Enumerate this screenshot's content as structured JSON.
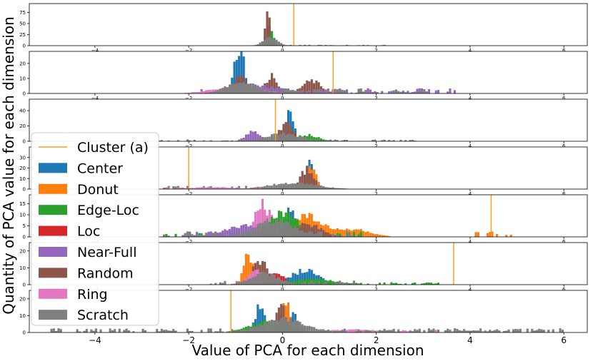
{
  "figure": {
    "xlabel": "Value of PCA for each dimension",
    "ylabel": "Quantity of PCA value for each dimension"
  },
  "legend": {
    "placement": "left",
    "items": [
      {
        "label": "Cluster (a)",
        "kind": "line",
        "color": "#ff9f1c"
      },
      {
        "label": "Center",
        "kind": "patch",
        "color": "#1f77b4"
      },
      {
        "label": "Donut",
        "kind": "patch",
        "color": "#ff7f0e"
      },
      {
        "label": "Edge-Loc",
        "kind": "patch",
        "color": "#2ca02c"
      },
      {
        "label": "Loc",
        "kind": "patch",
        "color": "#d62728"
      },
      {
        "label": "Near-Full",
        "kind": "patch",
        "color": "#9467bd"
      },
      {
        "label": "Random",
        "kind": "patch",
        "color": "#8c564b"
      },
      {
        "label": "Ring",
        "kind": "patch",
        "color": "#e377c2"
      },
      {
        "label": "Scratch",
        "kind": "patch",
        "color": "#7f7f7f"
      }
    ]
  },
  "chart_data": {
    "type": "histogram",
    "xlim": [
      -5.4,
      6.5
    ],
    "xticks": [
      -4,
      -2,
      0,
      2,
      4,
      6
    ],
    "xtick_labels": [
      "−4",
      "−2",
      "0",
      "2",
      "4",
      "6"
    ],
    "grid": false,
    "bin_width": 0.05,
    "panels": [
      {
        "ylim": [
          0,
          95
        ],
        "yticks": [
          0,
          25,
          50,
          75
        ],
        "cluster_x": 0.24,
        "series": [
          {
            "name": "Center",
            "peaks": [
              {
                "x": -0.32,
                "y": 45,
                "w": 0.08
              }
            ]
          },
          {
            "name": "Edge-Loc",
            "peaks": [
              {
                "x": -0.3,
                "y": 50,
                "w": 0.07
              }
            ]
          },
          {
            "name": "Random",
            "peaks": [
              {
                "x": -0.34,
                "y": 88,
                "w": 0.05
              }
            ]
          },
          {
            "name": "Scratch",
            "peaks": [
              {
                "x": -0.28,
                "y": 22,
                "w": 0.15
              }
            ],
            "tail": [
              -0.5,
              2.2,
              1.5
            ]
          }
        ]
      },
      {
        "ylim": [
          0,
          28
        ],
        "yticks": [
          0,
          10,
          20
        ],
        "cluster_x": 1.08,
        "series": [
          {
            "name": "Center",
            "peaks": [
              {
                "x": -0.92,
                "y": 26,
                "w": 0.1
              },
              {
                "x": -1.0,
                "y": 14,
                "w": 0.1
              }
            ]
          },
          {
            "name": "Random",
            "peaks": [
              {
                "x": -0.92,
                "y": 15,
                "w": 0.14
              },
              {
                "x": -0.25,
                "y": 15,
                "w": 0.12
              },
              {
                "x": 0.6,
                "y": 10,
                "w": 0.2
              }
            ]
          },
          {
            "name": "Near-Full",
            "peaks": [
              {
                "x": -0.6,
                "y": 6,
                "w": 0.6
              }
            ],
            "tail": [
              -1.8,
              3.7,
              3
            ]
          },
          {
            "name": "Ring",
            "peaks": [
              {
                "x": -1.0,
                "y": 5,
                "w": 0.5
              }
            ],
            "tail": [
              -1.8,
              -0.4,
              2
            ]
          },
          {
            "name": "Scratch",
            "peaks": [
              {
                "x": -0.9,
                "y": 10,
                "w": 0.3
              }
            ],
            "tail": [
              -1.5,
              3.0,
              3
            ]
          }
        ]
      },
      {
        "ylim": [
          0,
          55
        ],
        "yticks": [
          0,
          20,
          40
        ],
        "cluster_x": -0.15,
        "series": [
          {
            "name": "Center",
            "peaks": [
              {
                "x": 0.12,
                "y": 42,
                "w": 0.1
              }
            ]
          },
          {
            "name": "Near-Full",
            "peaks": [
              {
                "x": -0.65,
                "y": 16,
                "w": 0.15
              }
            ]
          },
          {
            "name": "Random",
            "peaks": [
              {
                "x": 0.05,
                "y": 27,
                "w": 0.15
              }
            ]
          },
          {
            "name": "Loc",
            "peaks": [
              {
                "x": 0.2,
                "y": 12,
                "w": 0.1
              }
            ]
          },
          {
            "name": "Edge-Loc",
            "peaks": [
              {
                "x": 0.5,
                "y": 10,
                "w": 0.25
              }
            ]
          },
          {
            "name": "Scratch",
            "peaks": [
              {
                "x": 0.0,
                "y": 12,
                "w": 0.35
              }
            ],
            "tail": [
              -2.8,
              2.8,
              2
            ]
          }
        ]
      },
      {
        "ylim": [
          0,
          40
        ],
        "yticks": [
          0,
          10,
          20,
          30
        ],
        "cluster_x": -2.0,
        "series": [
          {
            "name": "Center",
            "peaks": [
              {
                "x": 0.55,
                "y": 35,
                "w": 0.08
              }
            ]
          },
          {
            "name": "Donut",
            "peaks": [
              {
                "x": 0.6,
                "y": 26,
                "w": 0.1
              }
            ]
          },
          {
            "name": "Random",
            "peaks": [
              {
                "x": 0.5,
                "y": 22,
                "w": 0.15
              }
            ]
          },
          {
            "name": "Edge-Loc",
            "peaks": [
              {
                "x": 0.3,
                "y": 6,
                "w": 0.3
              }
            ]
          },
          {
            "name": "Scratch",
            "peaks": [
              {
                "x": 0.2,
                "y": 7,
                "w": 0.5
              }
            ],
            "tail": [
              -2.6,
              0.7,
              3
            ]
          },
          {
            "name": "Ring",
            "peaks": [
              {
                "x": -1.5,
                "y": 2,
                "w": 0.5
              }
            ],
            "tail": [
              -2.6,
              -0.5,
              1
            ]
          }
        ]
      },
      {
        "ylim": [
          0,
          19
        ],
        "yticks": [
          0,
          5,
          10,
          15
        ],
        "cluster_x": 4.45,
        "series": [
          {
            "name": "Ring",
            "peaks": [
              {
                "x": -0.5,
                "y": 17,
                "w": 0.12
              },
              {
                "x": -0.2,
                "y": 10,
                "w": 0.15
              }
            ]
          },
          {
            "name": "Center",
            "peaks": [
              {
                "x": 0.15,
                "y": 15,
                "w": 0.1
              }
            ]
          },
          {
            "name": "Donut",
            "peaks": [
              {
                "x": 0.45,
                "y": 12,
                "w": 0.35
              },
              {
                "x": 1.5,
                "y": 4,
                "w": 0.35
              }
            ],
            "tail": [
              3.9,
              4.85,
              2
            ]
          },
          {
            "name": "Edge-Loc",
            "peaks": [
              {
                "x": 0.0,
                "y": 13,
                "w": 0.3
              }
            ],
            "tail": [
              -2.6,
              1.8,
              2
            ]
          },
          {
            "name": "Near-Full",
            "peaks": [
              {
                "x": -0.9,
                "y": 6,
                "w": 0.4
              }
            ],
            "tail": [
              -2.2,
              0.0,
              2
            ]
          },
          {
            "name": "Random",
            "peaks": [
              {
                "x": 0.5,
                "y": 7,
                "w": 0.3
              }
            ]
          },
          {
            "name": "Scratch",
            "peaks": [
              {
                "x": -0.2,
                "y": 9,
                "w": 0.4
              }
            ],
            "tail": [
              -2.6,
              1.5,
              2
            ]
          }
        ]
      },
      {
        "ylim": [
          0,
          25
        ],
        "yticks": [
          0,
          10,
          20
        ],
        "cluster_x": 3.65,
        "series": [
          {
            "name": "Donut",
            "peaks": [
              {
                "x": -0.75,
                "y": 21,
                "w": 0.1
              }
            ]
          },
          {
            "name": "Random",
            "peaks": [
              {
                "x": -0.5,
                "y": 18,
                "w": 0.15
              }
            ]
          },
          {
            "name": "Ring",
            "peaks": [
              {
                "x": -0.6,
                "y": 11,
                "w": 0.15
              }
            ]
          },
          {
            "name": "Center",
            "peaks": [
              {
                "x": 0.45,
                "y": 10,
                "w": 0.3
              }
            ]
          },
          {
            "name": "Loc",
            "peaks": [
              {
                "x": -0.15,
                "y": 9,
                "w": 0.15
              }
            ]
          },
          {
            "name": "Edge-Loc",
            "peaks": [
              {
                "x": 0.6,
                "y": 4,
                "w": 0.5
              }
            ],
            "tail": [
              1.5,
              3.4,
              1
            ]
          },
          {
            "name": "Scratch",
            "peaks": [
              {
                "x": -0.4,
                "y": 8,
                "w": 0.3
              }
            ],
            "tail": [
              -1.6,
              1.6,
              2
            ]
          }
        ]
      },
      {
        "ylim": [
          0,
          25
        ],
        "yticks": [
          0,
          10,
          20
        ],
        "cluster_x": -1.1,
        "series": [
          {
            "name": "Center",
            "peaks": [
              {
                "x": -0.5,
                "y": 20,
                "w": 0.1
              },
              {
                "x": 0.2,
                "y": 15,
                "w": 0.12
              }
            ]
          },
          {
            "name": "Donut",
            "peaks": [
              {
                "x": 0.05,
                "y": 21,
                "w": 0.1
              }
            ]
          },
          {
            "name": "Random",
            "peaks": [
              {
                "x": -0.05,
                "y": 22,
                "w": 0.09
              }
            ]
          },
          {
            "name": "Edge-Loc",
            "peaks": [
              {
                "x": -0.3,
                "y": 8,
                "w": 0.4
              }
            ]
          },
          {
            "name": "Ring",
            "peaks": [
              {
                "x": 1.5,
                "y": 2,
                "w": 0.6
              }
            ],
            "tail": [
              0.8,
              4.5,
              1
            ]
          },
          {
            "name": "Scratch",
            "peaks": [
              {
                "x": 0.0,
                "y": 10,
                "w": 0.45
              }
            ],
            "tail": [
              -5.0,
              6.0,
              2
            ]
          }
        ]
      }
    ]
  }
}
